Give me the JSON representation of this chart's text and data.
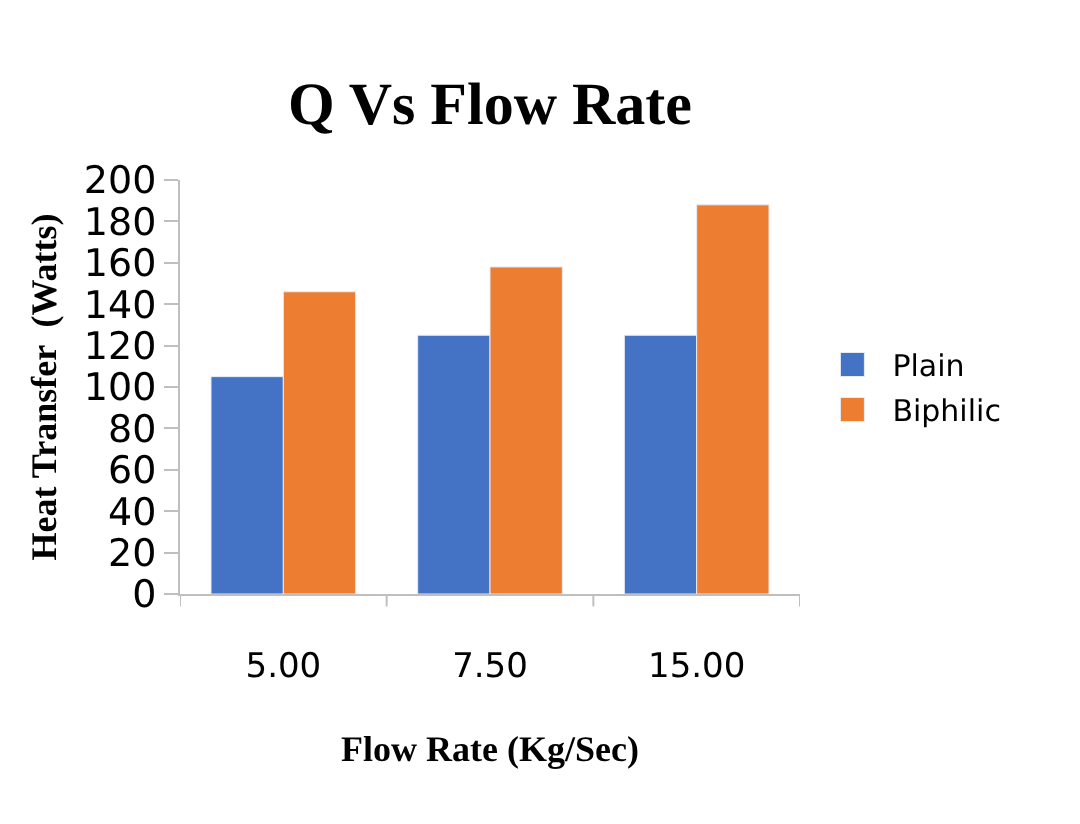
{
  "chart_data": {
    "type": "bar",
    "title": "Q Vs Flow Rate",
    "xlabel": "Flow Rate (Kg/Sec)",
    "ylabel": "Heat Transfer  (Watts)",
    "categories": [
      "5.00",
      "7.50",
      "15.00"
    ],
    "series": [
      {
        "name": "Plain",
        "color": "#4472c4",
        "values": [
          105,
          125,
          125
        ]
      },
      {
        "name": "Biphilic",
        "color": "#ed7d31",
        "values": [
          146,
          158,
          188
        ]
      }
    ],
    "ylim": [
      0,
      200
    ],
    "yticks": [
      0,
      20,
      40,
      60,
      80,
      100,
      120,
      140,
      160,
      180,
      200
    ],
    "legend": "right"
  }
}
